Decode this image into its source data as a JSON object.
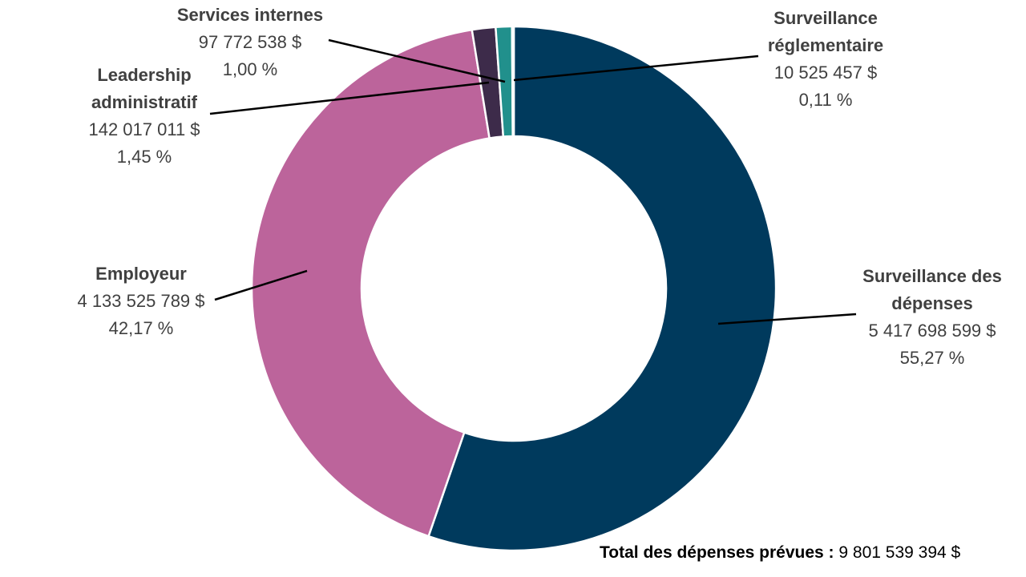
{
  "chart_data": {
    "type": "pie",
    "variant": "donut",
    "slices": [
      {
        "name": "Surveillance des dépenses",
        "name_lines": [
          "Surveillance des",
          "dépenses"
        ],
        "value_text": "5 417 698 599 $",
        "percent_text": "55,27 %",
        "value": 5417698599,
        "percent": 55.27,
        "color": "#003a5d"
      },
      {
        "name": "Employeur",
        "name_lines": [
          "Employeur"
        ],
        "value_text": "4 133 525 789 $",
        "percent_text": "42,17 %",
        "value": 4133525789,
        "percent": 42.17,
        "color": "#bc649b"
      },
      {
        "name": "Leadership administratif",
        "name_lines": [
          "Leadership",
          "administratif"
        ],
        "value_text": "142 017 011 $",
        "percent_text": "1,45 %",
        "value": 142017011,
        "percent": 1.45,
        "color": "#3d2b4a"
      },
      {
        "name": "Services internes",
        "name_lines": [
          "Services internes"
        ],
        "value_text": "97 772 538 $",
        "percent_text": "1,00 %",
        "value": 97772538,
        "percent": 1.0,
        "color": "#21908c"
      },
      {
        "name": "Surveillance réglementaire",
        "name_lines": [
          "Surveillance",
          "réglementaire"
        ],
        "value_text": "10 525 457 $",
        "percent_text": "0,11 %",
        "value": 10525457,
        "percent": 0.11,
        "color": "#1c4f70"
      }
    ],
    "legend": "none",
    "total": {
      "label": "Total des dépenses prévues :",
      "value": "9 801 539 394 $"
    }
  }
}
